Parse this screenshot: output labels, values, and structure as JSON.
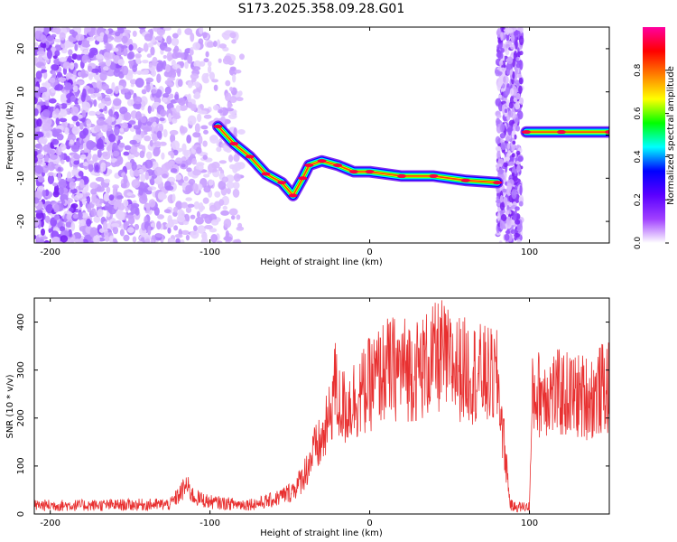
{
  "figure": {
    "title": "S173.2025.358.09.28.G01"
  },
  "chart_data": [
    {
      "type": "heatmap",
      "title": "S173.2025.358.09.28.G01",
      "xlabel": "Height of straight line (km)",
      "ylabel": "Frequency (Hz)",
      "xlim": [
        -210,
        150
      ],
      "ylim": [
        -25,
        25
      ],
      "xticks": [
        -200,
        -100,
        0,
        100
      ],
      "yticks": [
        -20,
        -10,
        0,
        10,
        20
      ],
      "grid": false,
      "colorbar": {
        "label": "Normalized spectral amplitude",
        "range": [
          0,
          1
        ],
        "ticks": [
          0,
          0.2,
          0.4,
          0.6,
          0.8
        ],
        "tick_labels": [
          "0.0",
          "0.2",
          "0.4",
          "0.6",
          "0.8"
        ],
        "colors": [
          "#ffffff",
          "#a040ff",
          "#5a00ff",
          "#0000ff",
          "#00ffff",
          "#00ff00",
          "#ffff00",
          "#ff8000",
          "#ff0000",
          "#ff00a0"
        ]
      },
      "signal_track": {
        "description": "dominant frequency ridge",
        "points": [
          {
            "x": -95,
            "y": 2
          },
          {
            "x": -85,
            "y": -2
          },
          {
            "x": -75,
            "y": -5
          },
          {
            "x": -65,
            "y": -9
          },
          {
            "x": -55,
            "y": -11
          },
          {
            "x": -48,
            "y": -14
          },
          {
            "x": -42,
            "y": -10
          },
          {
            "x": -38,
            "y": -7
          },
          {
            "x": -30,
            "y": -6
          },
          {
            "x": -20,
            "y": -7
          },
          {
            "x": -10,
            "y": -8.5
          },
          {
            "x": 0,
            "y": -8.5
          },
          {
            "x": 20,
            "y": -9.5
          },
          {
            "x": 40,
            "y": -9.5
          },
          {
            "x": 60,
            "y": -10.5
          },
          {
            "x": 80,
            "y": -11
          }
        ],
        "segment2": [
          {
            "x": 98,
            "y": 0.7
          },
          {
            "x": 120,
            "y": 0.7
          },
          {
            "x": 150,
            "y": 0.7
          }
        ],
        "gap_x": [
          82,
          97
        ],
        "noise_band_x": [
          80,
          95
        ]
      }
    },
    {
      "type": "line",
      "xlabel": "Height of straight line (km)",
      "ylabel": "SNR (10 * v/v)",
      "xlim": [
        -210,
        150
      ],
      "ylim": [
        0,
        450
      ],
      "xticks": [
        -200,
        -100,
        0,
        100
      ],
      "yticks": [
        0,
        100,
        200,
        300,
        400
      ],
      "grid": false,
      "series": [
        {
          "color": "#e83030",
          "x": [
            -210,
            -180,
            -150,
            -125,
            -118,
            -115,
            -110,
            -100,
            -90,
            -80,
            -70,
            -60,
            -50,
            -45,
            -40,
            -35,
            -30,
            -25,
            -22,
            -20,
            -15,
            -10,
            -5,
            0,
            10,
            20,
            30,
            40,
            45,
            50,
            60,
            70,
            80,
            85,
            88,
            90,
            92,
            95,
            100,
            102,
            105,
            110,
            120,
            130,
            140,
            145,
            150
          ],
          "y": [
            18,
            18,
            19,
            20,
            45,
            60,
            35,
            25,
            22,
            20,
            22,
            30,
            45,
            60,
            90,
            130,
            150,
            200,
            280,
            230,
            220,
            240,
            250,
            270,
            300,
            305,
            300,
            320,
            330,
            310,
            300,
            290,
            280,
            120,
            20,
            15,
            15,
            15,
            15,
            250,
            250,
            255,
            250,
            245,
            245,
            260,
            265
          ]
        }
      ]
    }
  ]
}
